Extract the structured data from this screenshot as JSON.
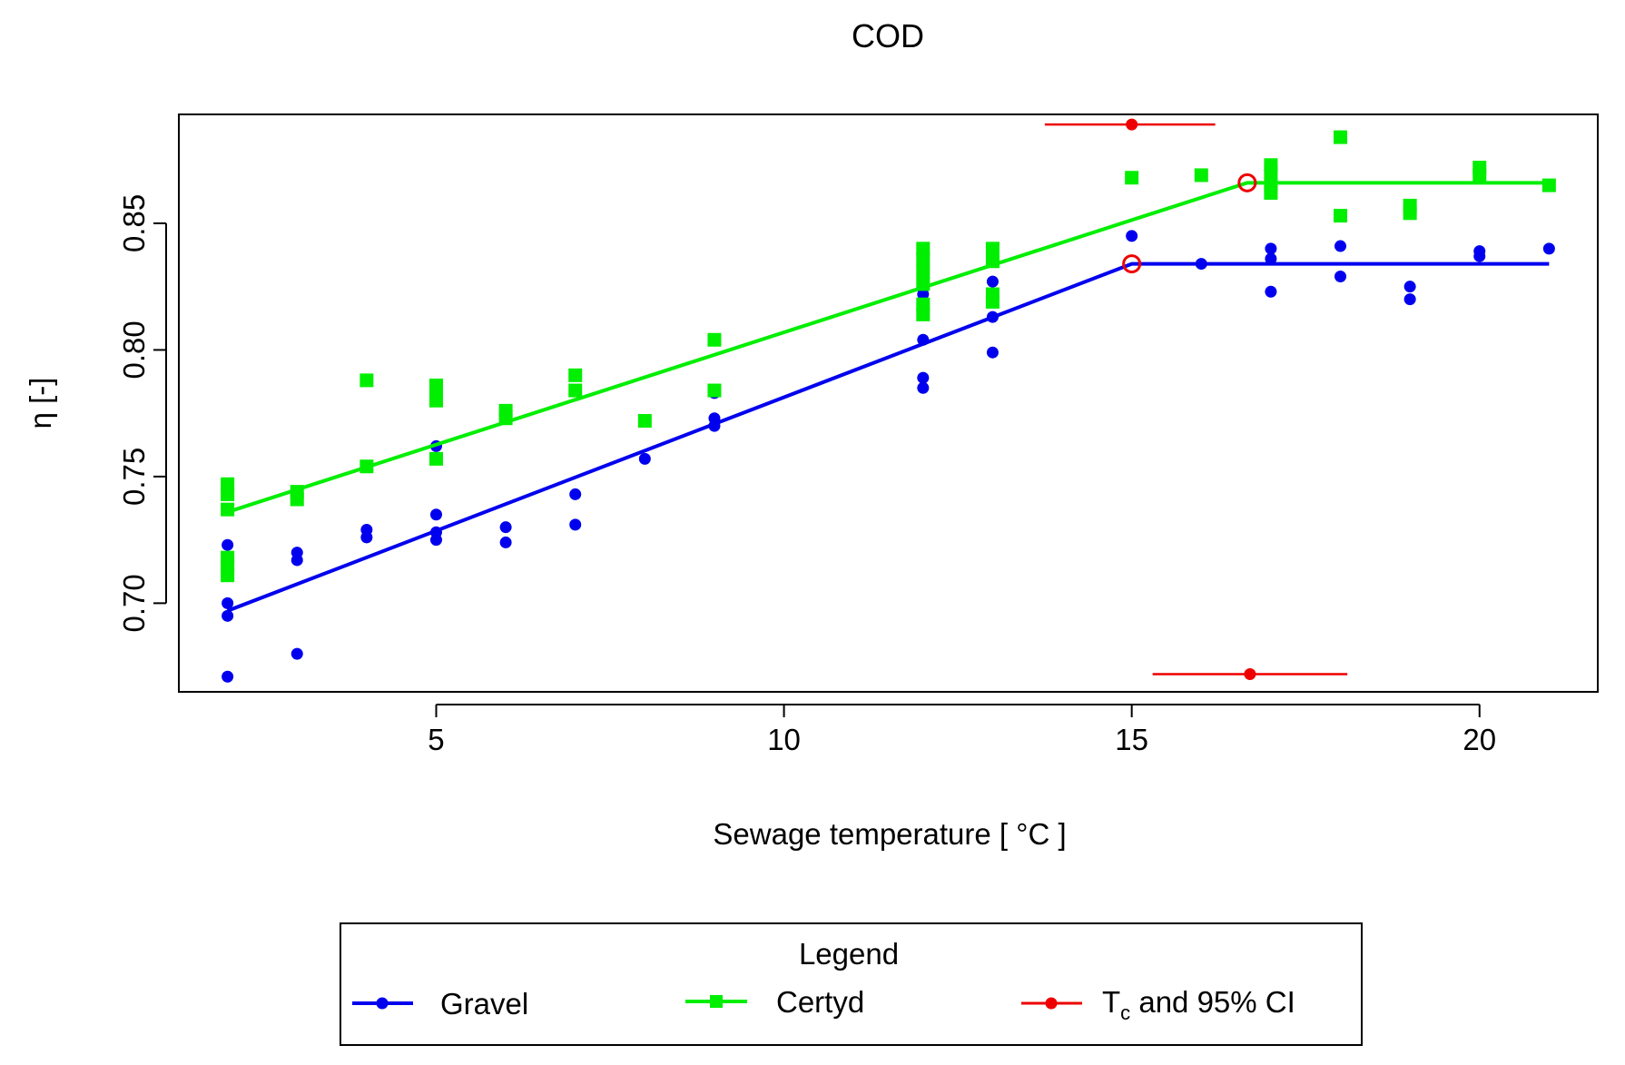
{
  "chart_data": {
    "type": "scatter",
    "title": "COD",
    "xlabel": "Sewage temperature [ °C ]",
    "ylabel": "η [-]",
    "xlim": [
      1.3,
      21.7
    ],
    "ylim": [
      0.665,
      0.893
    ],
    "x_ticks": [
      5,
      10,
      15,
      20
    ],
    "x_tick_labels": [
      "5",
      "10",
      "15",
      "20"
    ],
    "y_ticks": [
      0.7,
      0.75,
      0.8,
      0.85
    ],
    "y_tick_labels": [
      "0.70",
      "0.75",
      "0.80",
      "0.85"
    ],
    "grid": false,
    "series": [
      {
        "name": "Gravel",
        "color": "#0000ee",
        "marker": "circle",
        "points": [
          [
            2,
            0.723
          ],
          [
            2,
            0.7
          ],
          [
            2,
            0.695
          ],
          [
            2,
            0.671
          ],
          [
            3,
            0.72
          ],
          [
            3,
            0.717
          ],
          [
            3,
            0.68
          ],
          [
            4,
            0.729
          ],
          [
            4,
            0.726
          ],
          [
            5,
            0.762
          ],
          [
            5,
            0.735
          ],
          [
            5,
            0.728
          ],
          [
            5,
            0.725
          ],
          [
            6,
            0.73
          ],
          [
            6,
            0.724
          ],
          [
            7,
            0.743
          ],
          [
            7,
            0.731
          ],
          [
            8,
            0.757
          ],
          [
            9,
            0.783
          ],
          [
            9,
            0.773
          ],
          [
            9,
            0.77
          ],
          [
            12,
            0.822
          ],
          [
            12,
            0.804
          ],
          [
            12,
            0.789
          ],
          [
            12,
            0.785
          ],
          [
            13,
            0.827
          ],
          [
            13,
            0.813
          ],
          [
            13,
            0.799
          ],
          [
            15,
            0.845
          ],
          [
            16,
            0.834
          ],
          [
            17,
            0.84
          ],
          [
            17,
            0.836
          ],
          [
            17,
            0.823
          ],
          [
            18,
            0.841
          ],
          [
            18,
            0.829
          ],
          [
            19,
            0.825
          ],
          [
            19,
            0.82
          ],
          [
            20,
            0.839
          ],
          [
            20,
            0.837
          ],
          [
            21,
            0.84
          ]
        ],
        "fit": [
          [
            2,
            0.697
          ],
          [
            15,
            0.834
          ],
          [
            21,
            0.834
          ]
        ]
      },
      {
        "name": "Certyd",
        "color": "#00ee00",
        "marker": "square",
        "points": [
          [
            2,
            0.747
          ],
          [
            2,
            0.743
          ],
          [
            2,
            0.737
          ],
          [
            2,
            0.718
          ],
          [
            2,
            0.715
          ],
          [
            2,
            0.711
          ],
          [
            3,
            0.744
          ],
          [
            3,
            0.741
          ],
          [
            4,
            0.788
          ],
          [
            4,
            0.754
          ],
          [
            5,
            0.786
          ],
          [
            5,
            0.783
          ],
          [
            5,
            0.78
          ],
          [
            5,
            0.757
          ],
          [
            6,
            0.776
          ],
          [
            6,
            0.773
          ],
          [
            7,
            0.79
          ],
          [
            7,
            0.784
          ],
          [
            8,
            0.772
          ],
          [
            9,
            0.804
          ],
          [
            9,
            0.784
          ],
          [
            12,
            0.84
          ],
          [
            12,
            0.836
          ],
          [
            12,
            0.831
          ],
          [
            12,
            0.826
          ],
          [
            12,
            0.818
          ],
          [
            12,
            0.814
          ],
          [
            13,
            0.84
          ],
          [
            13,
            0.835
          ],
          [
            13,
            0.822
          ],
          [
            13,
            0.819
          ],
          [
            15,
            0.868
          ],
          [
            16,
            0.869
          ],
          [
            17,
            0.873
          ],
          [
            17,
            0.87
          ],
          [
            17,
            0.865
          ],
          [
            17,
            0.862
          ],
          [
            18,
            0.884
          ],
          [
            18,
            0.853
          ],
          [
            19,
            0.857
          ],
          [
            19,
            0.854
          ],
          [
            20,
            0.872
          ],
          [
            20,
            0.869
          ],
          [
            21,
            0.865
          ]
        ],
        "fit": [
          [
            2,
            0.736
          ],
          [
            16.66,
            0.866
          ],
          [
            21,
            0.866
          ]
        ]
      }
    ],
    "breakpoints": [
      {
        "series": "Gravel",
        "x": 15,
        "y": 0.834
      },
      {
        "series": "Certyd",
        "x": 16.66,
        "y": 0.866
      }
    ],
    "tc_ci": [
      {
        "series": "Gravel",
        "estimate": 15.0,
        "lower": 13.75,
        "upper": 16.2,
        "y": 0.889
      },
      {
        "series": "Certyd",
        "estimate": 16.7,
        "lower": 15.3,
        "upper": 18.1,
        "y": 0.672
      }
    ],
    "legend": {
      "title": "Legend",
      "position": "bottom",
      "entries": [
        {
          "label": "Gravel",
          "color": "#0000ee",
          "marker": "circle"
        },
        {
          "label": "Certyd",
          "color": "#00ee00",
          "marker": "square"
        },
        {
          "label_main": "T",
          "label_sub": "c",
          "label_rest": " and 95% CI",
          "color": "#ee0000",
          "marker": "circle"
        }
      ]
    }
  }
}
